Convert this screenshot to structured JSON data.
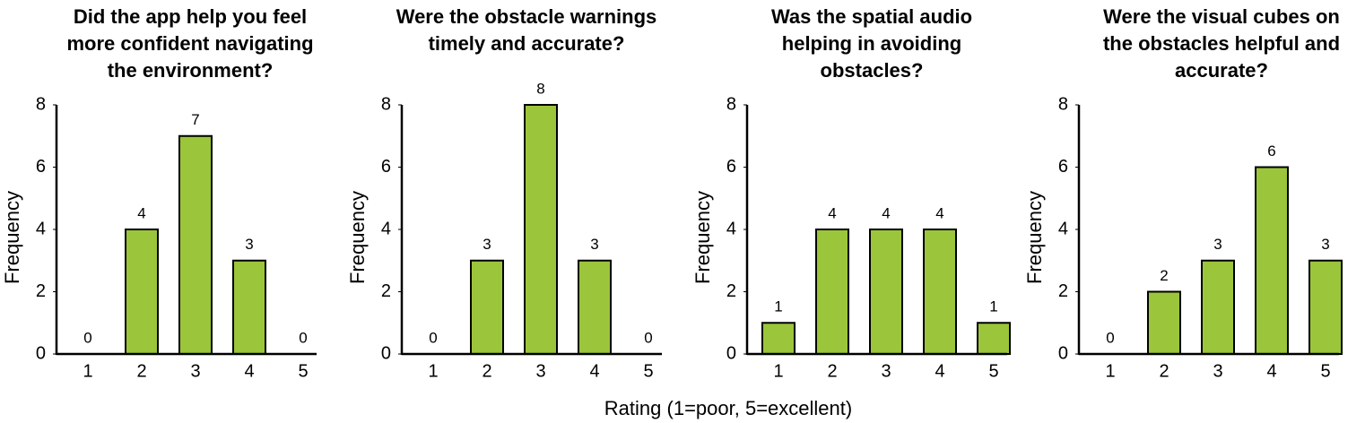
{
  "xlabel": "Rating (1=poor, 5=excellent)",
  "chart_data": [
    {
      "type": "bar",
      "title": [
        "Did the app help you feel",
        "more confident navigating",
        "the environment?"
      ],
      "ylabel": "Frequency",
      "categories": [
        "1",
        "2",
        "3",
        "4",
        "5"
      ],
      "values": [
        0,
        4,
        7,
        3,
        0
      ],
      "color": "#9bc53a",
      "ylim": [
        0,
        8
      ],
      "yticks": [
        0,
        2,
        4,
        6,
        8
      ]
    },
    {
      "type": "bar",
      "title": [
        "Were the obstacle warnings",
        "timely and accurate?"
      ],
      "ylabel": "Frequency",
      "categories": [
        "1",
        "2",
        "3",
        "4",
        "5"
      ],
      "values": [
        0,
        3,
        8,
        3,
        0
      ],
      "color": "#9bc53a",
      "ylim": [
        0,
        8
      ],
      "yticks": [
        0,
        2,
        4,
        6,
        8
      ]
    },
    {
      "type": "bar",
      "title": [
        "Was the spatial audio",
        "helping in avoiding",
        "obstacles?"
      ],
      "ylabel": "Frequency",
      "categories": [
        "1",
        "2",
        "3",
        "4",
        "5"
      ],
      "values": [
        1,
        4,
        4,
        4,
        1
      ],
      "color": "#9bc53a",
      "ylim": [
        0,
        8
      ],
      "yticks": [
        0,
        2,
        4,
        6,
        8
      ]
    },
    {
      "type": "bar",
      "title": [
        "Were the visual cubes on",
        "the obstacles helpful and",
        "accurate?"
      ],
      "ylabel": "Frequency",
      "categories": [
        "1",
        "2",
        "3",
        "4",
        "5"
      ],
      "values": [
        0,
        2,
        3,
        6,
        3
      ],
      "color": "#9bc53a",
      "ylim": [
        0,
        8
      ],
      "yticks": [
        0,
        2,
        4,
        6,
        8
      ]
    }
  ]
}
